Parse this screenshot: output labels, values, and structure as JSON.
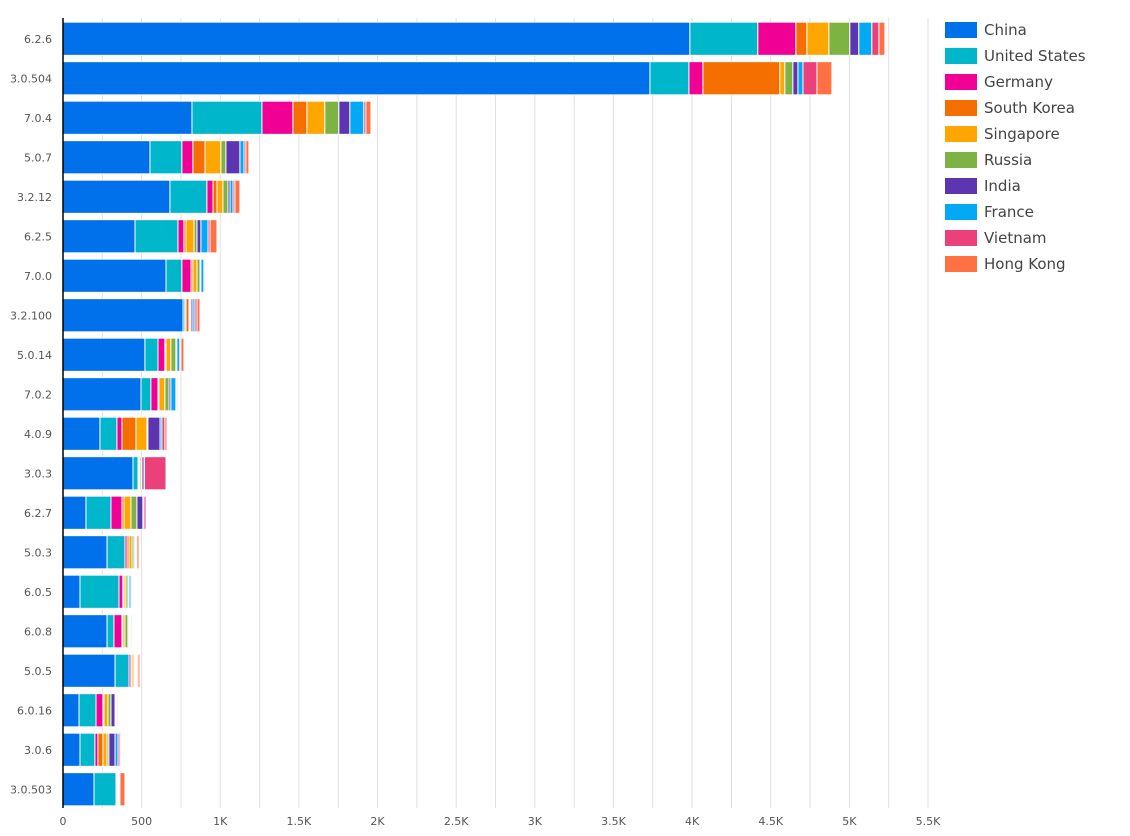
{
  "chart_data": {
    "type": "bar",
    "orientation": "horizontal",
    "stacked": true,
    "title": "",
    "xlabel": "",
    "ylabel": "",
    "xlim": [
      0,
      5500
    ],
    "x_ticks": [
      0,
      500,
      1000,
      1500,
      2000,
      2500,
      3000,
      3500,
      4000,
      4500,
      5000,
      5500
    ],
    "x_tick_labels": [
      "0",
      "500",
      "1K",
      "1.5K",
      "2K",
      "2.5K",
      "3K",
      "3.5K",
      "4K",
      "4.5K",
      "5K",
      "5.5K"
    ],
    "grid": true,
    "legend_position": "top-right",
    "categories": [
      "6.2.6",
      "3.0.504",
      "7.0.4",
      "5.0.7",
      "3.2.12",
      "6.2.5",
      "7.0.0",
      "3.2.100",
      "5.0.14",
      "7.0.2",
      "4.0.9",
      "3.0.3",
      "6.2.7",
      "5.0.3",
      "6.0.5",
      "6.0.8",
      "5.0.5",
      "6.0.16",
      "3.0.6",
      "3.0.503"
    ],
    "series": [
      {
        "name": "China",
        "color": "#0071eb",
        "values": [
          3986,
          3732,
          820,
          553,
          680,
          458,
          655,
          763,
          521,
          496,
          235,
          445,
          146,
          280,
          108,
          280,
          331,
          102,
          108,
          197
        ]
      },
      {
        "name": "United States",
        "color": "#00b6cb",
        "values": [
          432,
          248,
          445,
          203,
          235,
          273,
          101,
          12,
          83,
          63,
          108,
          32,
          159,
          114,
          248,
          44,
          89,
          108,
          95,
          140
        ]
      },
      {
        "name": "Germany",
        "color": "#f10096",
        "values": [
          242,
          89,
          197,
          70,
          39,
          38,
          58,
          7,
          44,
          45,
          32,
          6,
          70,
          13,
          25,
          51,
          12,
          44,
          19,
          6
        ]
      },
      {
        "name": "South Korea",
        "color": "#f56e00",
        "values": [
          70,
          489,
          89,
          77,
          25,
          13,
          12,
          19,
          7,
          6,
          89,
          3,
          13,
          13,
          7,
          6,
          7,
          7,
          32,
          3
        ]
      },
      {
        "name": "Singapore",
        "color": "#ffa600",
        "values": [
          140,
          32,
          114,
          101,
          38,
          51,
          26,
          6,
          31,
          38,
          70,
          10,
          44,
          19,
          12,
          13,
          12,
          25,
          26,
          4
        ]
      },
      {
        "name": "Russia",
        "color": "#7cb342",
        "values": [
          133,
          51,
          89,
          32,
          32,
          19,
          19,
          7,
          32,
          26,
          6,
          6,
          38,
          12,
          13,
          19,
          7,
          19,
          12,
          3
        ]
      },
      {
        "name": "India",
        "color": "#5e35b1",
        "values": [
          57,
          32,
          70,
          89,
          13,
          25,
          6,
          12,
          6,
          12,
          77,
          13,
          38,
          7,
          7,
          7,
          6,
          26,
          39,
          3
        ]
      },
      {
        "name": "France",
        "color": "#03a9f4",
        "values": [
          83,
          32,
          89,
          26,
          19,
          45,
          19,
          13,
          19,
          32,
          12,
          3,
          7,
          6,
          12,
          6,
          6,
          6,
          19,
          3
        ]
      },
      {
        "name": "Vietnam",
        "color": "#ec407a",
        "values": [
          45,
          89,
          13,
          12,
          12,
          13,
          7,
          13,
          7,
          6,
          19,
          137,
          13,
          6,
          7,
          6,
          7,
          6,
          12,
          3
        ]
      },
      {
        "name": "Hong Kong",
        "color": "#ff7043",
        "values": [
          38,
          95,
          32,
          19,
          32,
          44,
          6,
          19,
          19,
          7,
          13,
          0,
          6,
          13,
          6,
          7,
          12,
          7,
          7,
          32
        ]
      }
    ]
  }
}
